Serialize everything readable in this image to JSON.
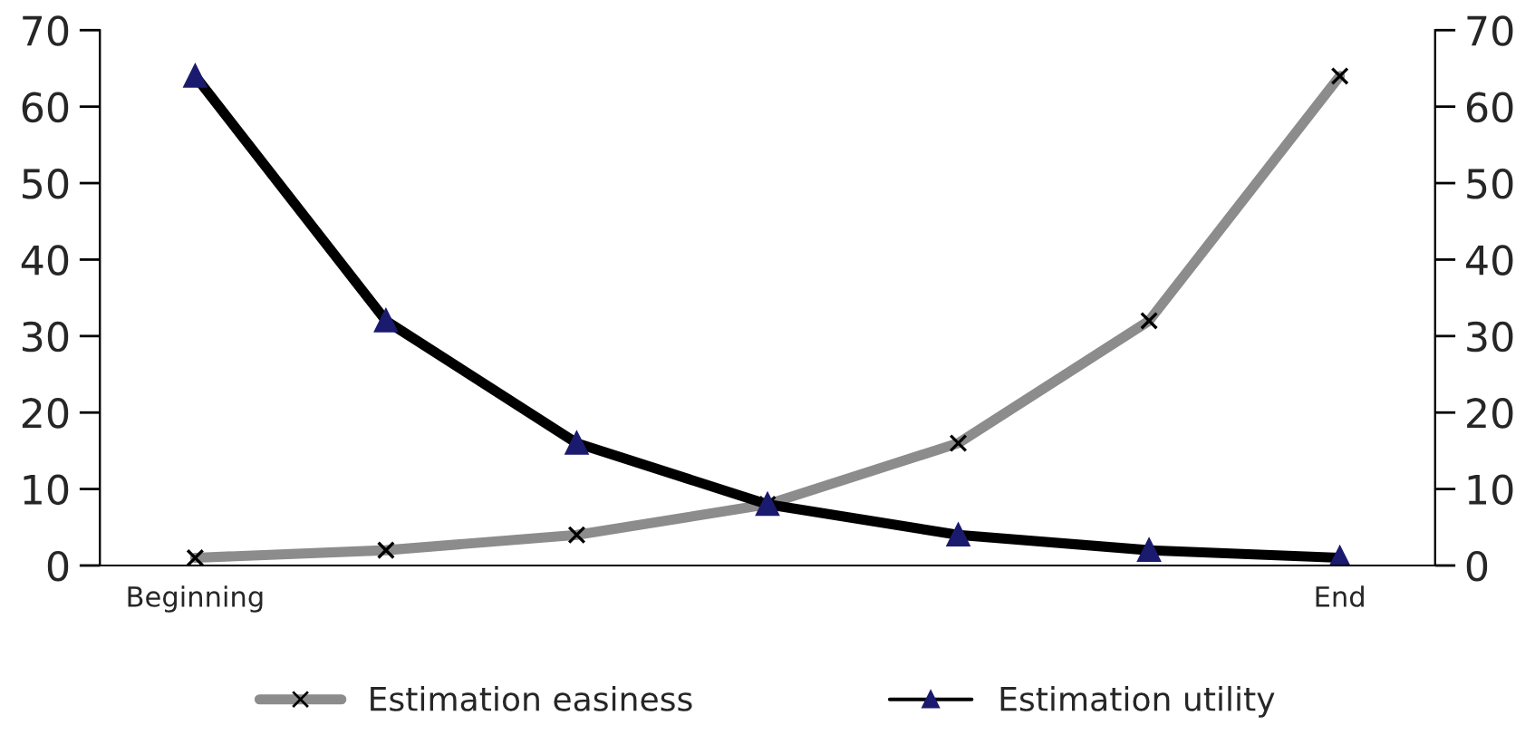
{
  "chart_data": {
    "type": "line",
    "categories": [
      "Beginning",
      null,
      null,
      null,
      null,
      null,
      "End"
    ],
    "series": [
      {
        "name": "Estimation easiness",
        "color": "#8c8c8c",
        "marker": "cross",
        "values": [
          1,
          2,
          4,
          8,
          16,
          32,
          64
        ]
      },
      {
        "name": "Estimation utility",
        "color": "#000000",
        "marker": "triangle",
        "values": [
          64,
          32,
          16,
          8,
          4,
          2,
          1
        ]
      }
    ],
    "ylim": [
      0,
      70
    ],
    "yticks": [
      0,
      10,
      20,
      30,
      40,
      50,
      60,
      70
    ],
    "y2lim": [
      0,
      70
    ],
    "y2ticks": [
      0,
      10,
      20,
      30,
      40,
      50,
      60,
      70
    ],
    "grid": false,
    "legend": "bottom",
    "line_style": "solid"
  }
}
